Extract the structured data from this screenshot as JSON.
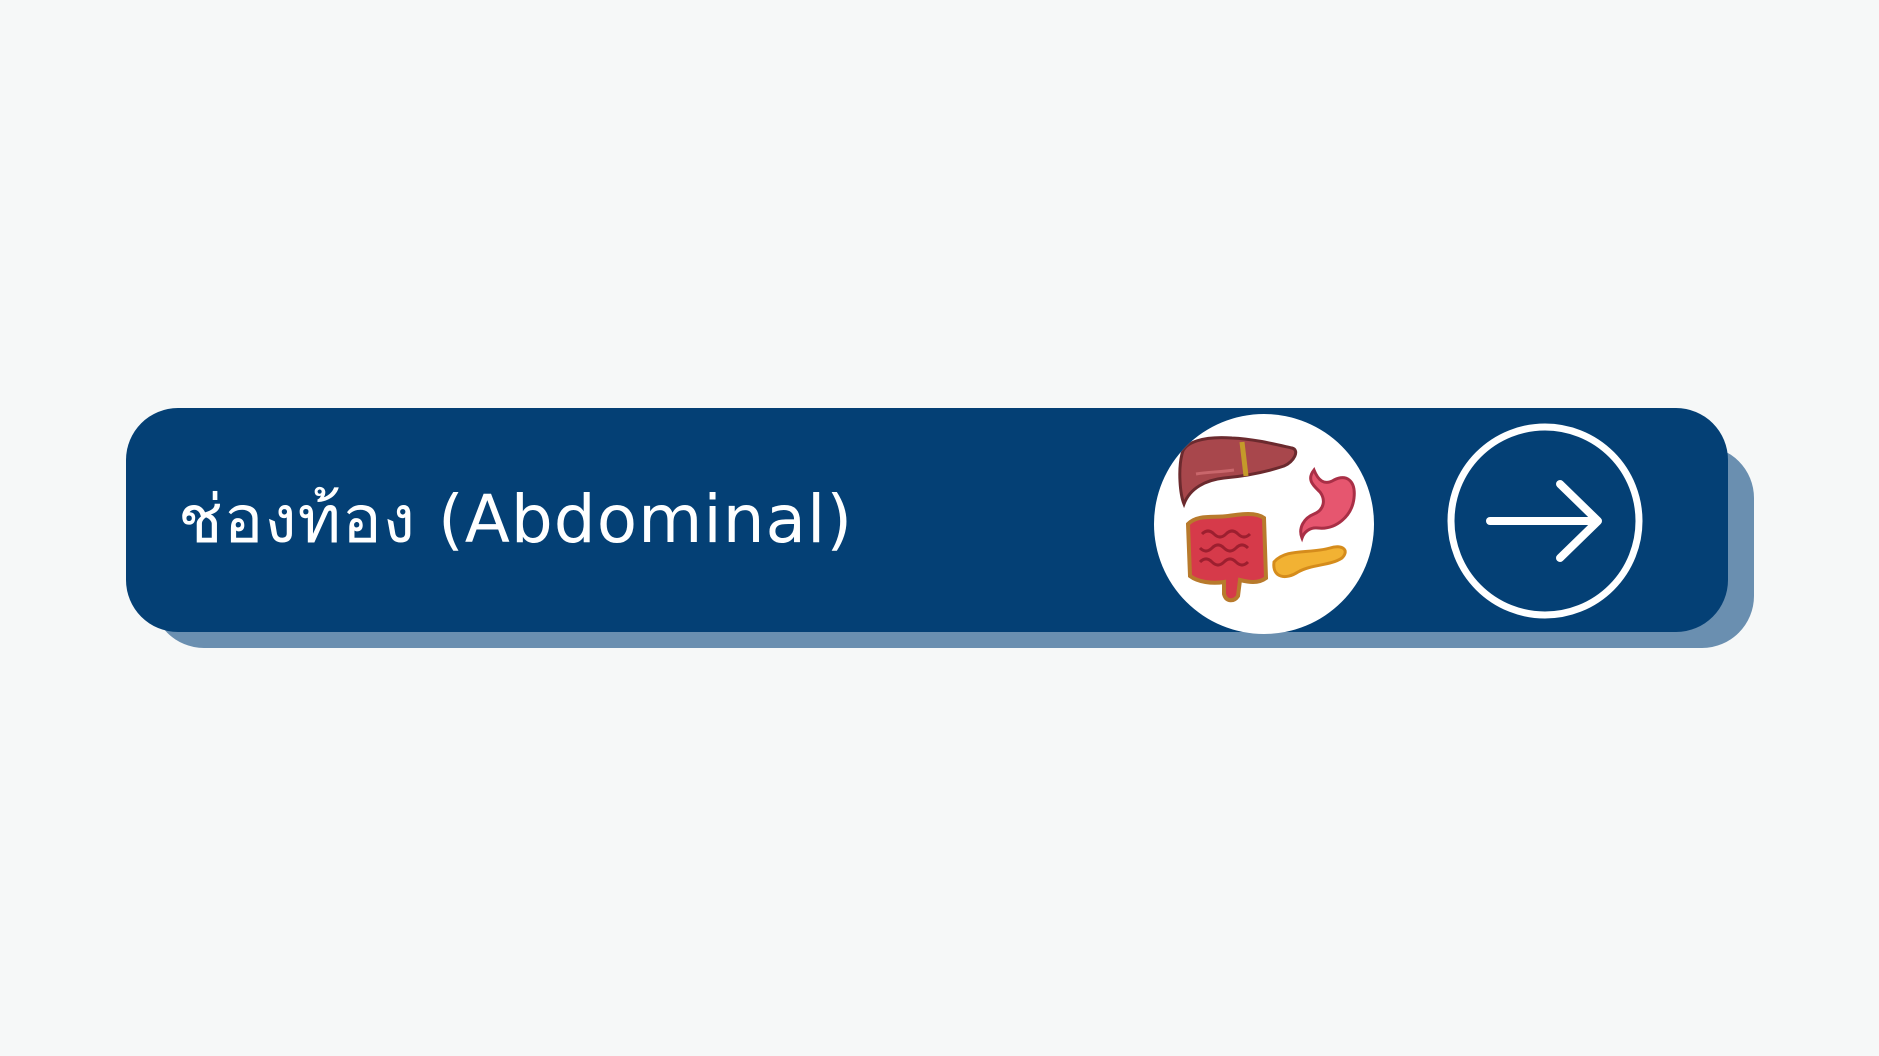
{
  "card": {
    "title": "ช่องท้อง (Abdominal)"
  },
  "illustration": {
    "organs": [
      "liver-icon",
      "stomach-icon",
      "intestines-icon",
      "pancreas-icon"
    ]
  },
  "next_button": {
    "icon": "arrow-right-icon"
  },
  "colors": {
    "background": "#f6f8f8",
    "card": "#044075",
    "card_shadow": "#6a8fb0",
    "text": "#ffffff"
  }
}
